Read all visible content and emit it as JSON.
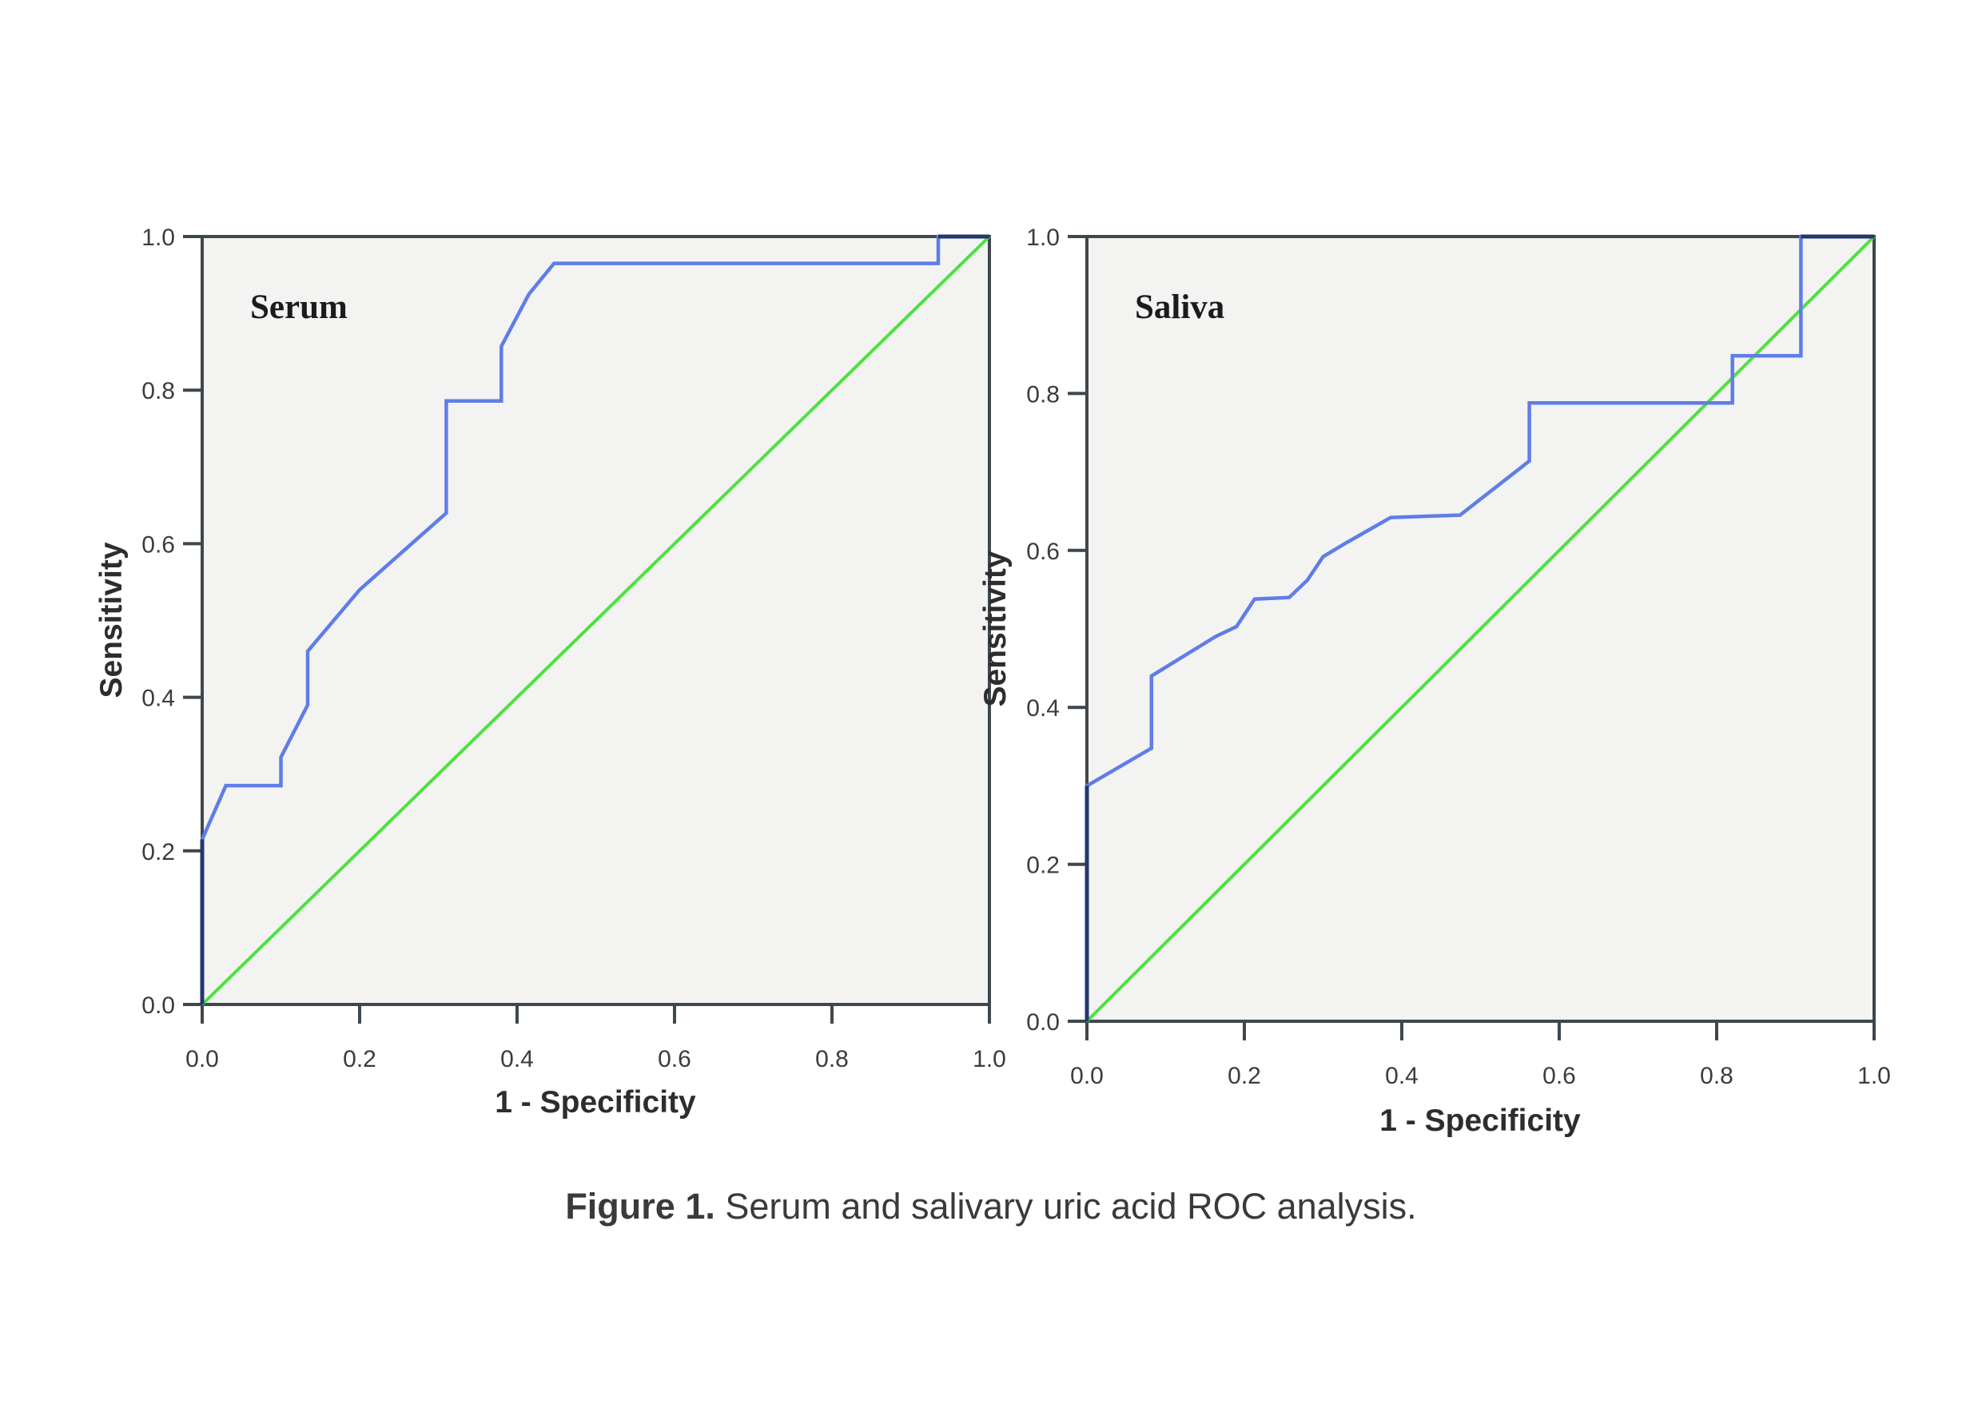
{
  "figure": {
    "caption_bold": "Figure 1.",
    "caption_rest": " Serum and salivary uric acid ROC analysis."
  },
  "axes": {
    "x_label": "1 - Specificity",
    "y_label": "Sensitivity",
    "tick_labels": [
      "0.0",
      "0.2",
      "0.4",
      "0.6",
      "0.8",
      "1.0"
    ]
  },
  "panels": {
    "serum_title": "Serum",
    "saliva_title": "Saliva"
  },
  "colors": {
    "roc_curve": "#5f7de8",
    "roc_on_axis": "#23366e",
    "diagonal_reference": "#4ce23e",
    "frame": "#3f474e",
    "plot_background": "#f3f3f2",
    "text": "#3a3a3a"
  },
  "chart_data": {
    "type": "line",
    "title": "Serum and salivary uric acid ROC analysis",
    "xlabel": "1 - Specificity",
    "ylabel": "Sensitivity",
    "xlim": [
      0,
      1
    ],
    "ylim": [
      0,
      1
    ],
    "grid": false,
    "legend": false,
    "tick_values": [
      0.0,
      0.2,
      0.4,
      0.6,
      0.8,
      1.0
    ],
    "panels": [
      {
        "name": "Serum",
        "roc_points": [
          [
            0,
            0
          ],
          [
            0,
            0.215
          ],
          [
            0.03,
            0.285
          ],
          [
            0.1,
            0.285
          ],
          [
            0.1,
            0.322
          ],
          [
            0.134,
            0.39
          ],
          [
            0.134,
            0.46
          ],
          [
            0.2,
            0.54
          ],
          [
            0.31,
            0.64
          ],
          [
            0.31,
            0.786
          ],
          [
            0.38,
            0.786
          ],
          [
            0.38,
            0.857
          ],
          [
            0.415,
            0.925
          ],
          [
            0.447,
            0.965
          ],
          [
            0.935,
            0.965
          ],
          [
            0.935,
            1.0
          ],
          [
            1.0,
            1.0
          ]
        ],
        "reference_line": [
          [
            0,
            0
          ],
          [
            1,
            1
          ]
        ]
      },
      {
        "name": "Saliva",
        "roc_points": [
          [
            0,
            0
          ],
          [
            0,
            0.3
          ],
          [
            0.082,
            0.348
          ],
          [
            0.082,
            0.44
          ],
          [
            0.163,
            0.49
          ],
          [
            0.19,
            0.503
          ],
          [
            0.213,
            0.538
          ],
          [
            0.257,
            0.54
          ],
          [
            0.28,
            0.562
          ],
          [
            0.3,
            0.592
          ],
          [
            0.33,
            0.61
          ],
          [
            0.386,
            0.642
          ],
          [
            0.474,
            0.645
          ],
          [
            0.562,
            0.714
          ],
          [
            0.562,
            0.788
          ],
          [
            0.82,
            0.788
          ],
          [
            0.82,
            0.848
          ],
          [
            0.907,
            0.848
          ],
          [
            0.907,
            1.0
          ],
          [
            1.0,
            1.0
          ]
        ],
        "reference_line": [
          [
            0,
            0
          ],
          [
            1,
            1
          ]
        ]
      }
    ]
  }
}
